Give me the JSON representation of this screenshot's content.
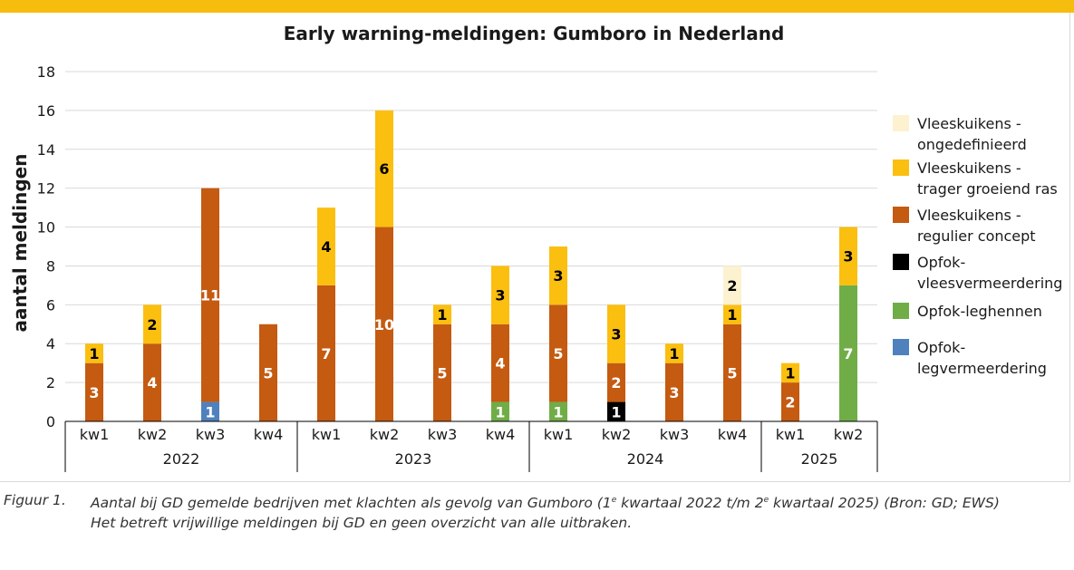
{
  "chart_data": {
    "type": "bar",
    "stacked": true,
    "title": "Early warning-meldingen: Gumboro in Nederland",
    "ylabel": "aantal meldingen",
    "xlabel": "",
    "ylim": [
      0,
      18
    ],
    "yticks": [
      "0",
      "2",
      "4",
      "6",
      "8",
      "10",
      "12",
      "14",
      "16",
      "18"
    ],
    "grid": true,
    "legend_position": "right",
    "categories": [
      "kw1",
      "kw2",
      "kw3",
      "kw4",
      "kw1",
      "kw2",
      "kw3",
      "kw4",
      "kw1",
      "kw2",
      "kw3",
      "kw4",
      "kw1",
      "kw2"
    ],
    "groups": [
      {
        "label": "2022",
        "count": 4
      },
      {
        "label": "2023",
        "count": 4
      },
      {
        "label": "2024",
        "count": 4
      },
      {
        "label": "2025",
        "count": 2
      }
    ],
    "series": [
      {
        "name": "Opfok-legvermeerdering",
        "color": "#4f81bd",
        "values": [
          0,
          0,
          1,
          0,
          0,
          0,
          0,
          0,
          0,
          0,
          0,
          0,
          0,
          0
        ]
      },
      {
        "name": "Opfok-leghennen",
        "color": "#70ad47",
        "values": [
          0,
          0,
          0,
          0,
          0,
          0,
          0,
          1,
          1,
          0,
          0,
          0,
          0,
          7
        ]
      },
      {
        "name": "Opfok-vleesvermeerdering",
        "color": "#000000",
        "values": [
          0,
          0,
          0,
          0,
          0,
          0,
          0,
          0,
          0,
          1,
          0,
          0,
          0,
          0
        ]
      },
      {
        "name": "Vleeskuikens - regulier concept",
        "color": "#c55a11",
        "values": [
          3,
          4,
          11,
          5,
          7,
          10,
          5,
          4,
          5,
          2,
          3,
          5,
          2,
          0
        ]
      },
      {
        "name": "Vleeskuikens - trager groeiend ras",
        "color": "#fbbf10",
        "values": [
          1,
          2,
          0,
          0,
          4,
          6,
          1,
          3,
          3,
          3,
          1,
          1,
          1,
          3
        ]
      },
      {
        "name": "Vleeskuikens - ongedefinieerd",
        "color": "#fdf2d0",
        "values": [
          0,
          0,
          0,
          0,
          0,
          0,
          0,
          0,
          0,
          0,
          0,
          2,
          0,
          0
        ]
      }
    ],
    "legend": [
      {
        "line1": "Vleeskuikens -",
        "line2": "ongedefinieerd",
        "color": "#fdf2d0"
      },
      {
        "line1": "Vleeskuikens -",
        "line2": "trager groeiend ras",
        "color": "#fbbf10"
      },
      {
        "line1": "Vleeskuikens -",
        "line2": "regulier concept",
        "color": "#c55a11"
      },
      {
        "line1": "Opfok-",
        "line2": "vleesvermeerdering",
        "color": "#000000"
      },
      {
        "line1": "Opfok-leghennen",
        "line2": "",
        "color": "#70ad47"
      },
      {
        "line1": "Opfok-",
        "line2": "legvermeerdering",
        "color": "#4f81bd"
      }
    ]
  },
  "caption": {
    "label": "Figuur 1.",
    "line1_pre": "Aantal bij GD gemelde bedrijven met klachten als gevolg van Gumboro (1",
    "sup1": "e",
    "line1_mid": " kwartaal 2022 t/m 2",
    "sup2": "e",
    "line1_post": " kwartaal 2025) (Bron: GD; EWS)",
    "line2": "Het betreft vrijwillige meldingen bij GD en geen overzicht van alle uitbraken."
  }
}
